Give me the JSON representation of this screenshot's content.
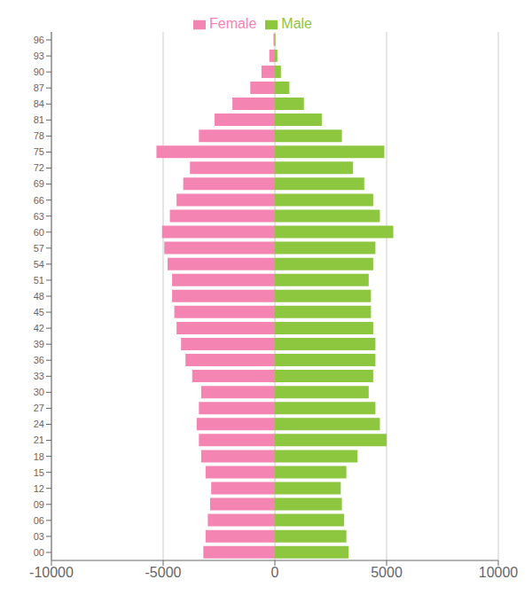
{
  "chart_data": {
    "type": "bar",
    "orientation": "horizontal",
    "categories": [
      "00",
      "03",
      "06",
      "09",
      "12",
      "15",
      "18",
      "21",
      "24",
      "27",
      "30",
      "33",
      "36",
      "39",
      "42",
      "45",
      "48",
      "51",
      "54",
      "57",
      "60",
      "63",
      "66",
      "69",
      "72",
      "75",
      "78",
      "81",
      "84",
      "87",
      "90",
      "93",
      "96"
    ],
    "series": [
      {
        "name": "Female",
        "color": "#f484b2",
        "values": [
          -3200,
          -3100,
          -3000,
          -2900,
          -2850,
          -3100,
          -3300,
          -3400,
          -3500,
          -3400,
          -3300,
          -3700,
          -4000,
          -4200,
          -4400,
          -4500,
          -4600,
          -4600,
          -4800,
          -4950,
          -5050,
          -4700,
          -4400,
          -4100,
          -3800,
          -5300,
          -3400,
          -2700,
          -1900,
          -1100,
          -600,
          -250,
          -60
        ]
      },
      {
        "name": "Male",
        "color": "#8dc63f",
        "values": [
          3300,
          3200,
          3100,
          3000,
          2950,
          3200,
          3700,
          5000,
          4700,
          4500,
          4200,
          4400,
          4500,
          4500,
          4400,
          4300,
          4300,
          4200,
          4400,
          4500,
          5300,
          4700,
          4400,
          4000,
          3500,
          4900,
          3000,
          2100,
          1300,
          650,
          270,
          110,
          25
        ]
      }
    ],
    "xlim": [
      -10000,
      10000
    ],
    "xticks": [
      -10000,
      -5000,
      0,
      5000,
      10000
    ],
    "grid": true,
    "legend": "top"
  }
}
